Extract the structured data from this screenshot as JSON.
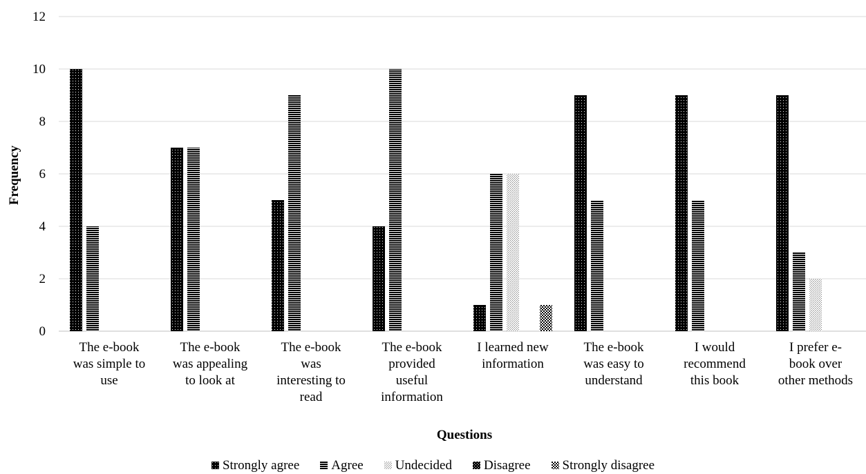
{
  "chart_data": {
    "type": "bar",
    "title": "",
    "xlabel": "Questions",
    "ylabel": "Frequency",
    "ylim": [
      0,
      12
    ],
    "yticks": [
      0,
      2,
      4,
      6,
      8,
      10,
      12
    ],
    "grid": true,
    "legend_position": "bottom",
    "categories": [
      [
        "The e-book",
        "was simple to",
        "use"
      ],
      [
        "The e-book",
        "was appealing",
        "to look at"
      ],
      [
        "The e-book",
        "was",
        "interesting to",
        "read"
      ],
      [
        "The e-book",
        "provided",
        "useful",
        "information"
      ],
      [
        "I learned new",
        "information"
      ],
      [
        "The e-book",
        "was easy to",
        "understand"
      ],
      [
        "I would",
        "recommend",
        "this book"
      ],
      [
        "I prefer e-",
        "book over",
        "other methods"
      ]
    ],
    "series": [
      {
        "name": "Strongly agree",
        "pattern": "strongly-agree",
        "color": "#000000",
        "values": [
          10,
          7,
          5,
          4,
          1,
          9,
          9,
          9
        ]
      },
      {
        "name": "Agree",
        "pattern": "agree",
        "color": "#000000",
        "values": [
          4,
          7,
          9,
          10,
          6,
          5,
          5,
          3
        ]
      },
      {
        "name": "Undecided",
        "pattern": "undecided",
        "color": "#9a9a9a",
        "values": [
          0,
          0,
          0,
          0,
          6,
          0,
          0,
          2
        ]
      },
      {
        "name": "Disagree",
        "pattern": "disagree",
        "color": "#000000",
        "values": [
          0,
          0,
          0,
          0,
          0,
          0,
          0,
          0
        ]
      },
      {
        "name": "Strongly disagree",
        "pattern": "strongly-disagree",
        "color": "#000000",
        "values": [
          0,
          0,
          0,
          0,
          1,
          0,
          0,
          0
        ]
      }
    ]
  }
}
